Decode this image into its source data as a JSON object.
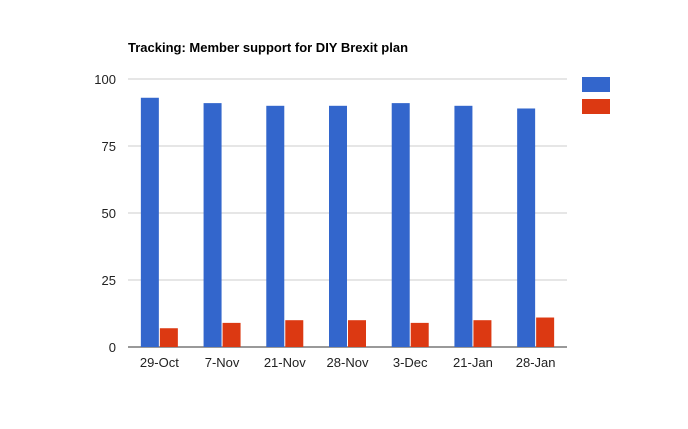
{
  "chart_data": {
    "type": "bar",
    "title": "Tracking: Member support for DIY Brexit plan",
    "xlabel": "",
    "ylabel": "",
    "categories": [
      "29-Oct",
      "7-Nov",
      "21-Nov",
      "28-Nov",
      "3-Dec",
      "21-Jan",
      "28-Jan"
    ],
    "series": [
      {
        "color": "#3366cc",
        "values": [
          93,
          91,
          90,
          90,
          91,
          90,
          89
        ]
      },
      {
        "color": "#dc3912",
        "values": [
          7,
          9,
          10,
          10,
          9,
          10,
          11
        ]
      }
    ],
    "ylim": [
      0,
      100
    ],
    "yticks": [
      0,
      25,
      50,
      75,
      100
    ],
    "grid": true,
    "legend": "right"
  }
}
